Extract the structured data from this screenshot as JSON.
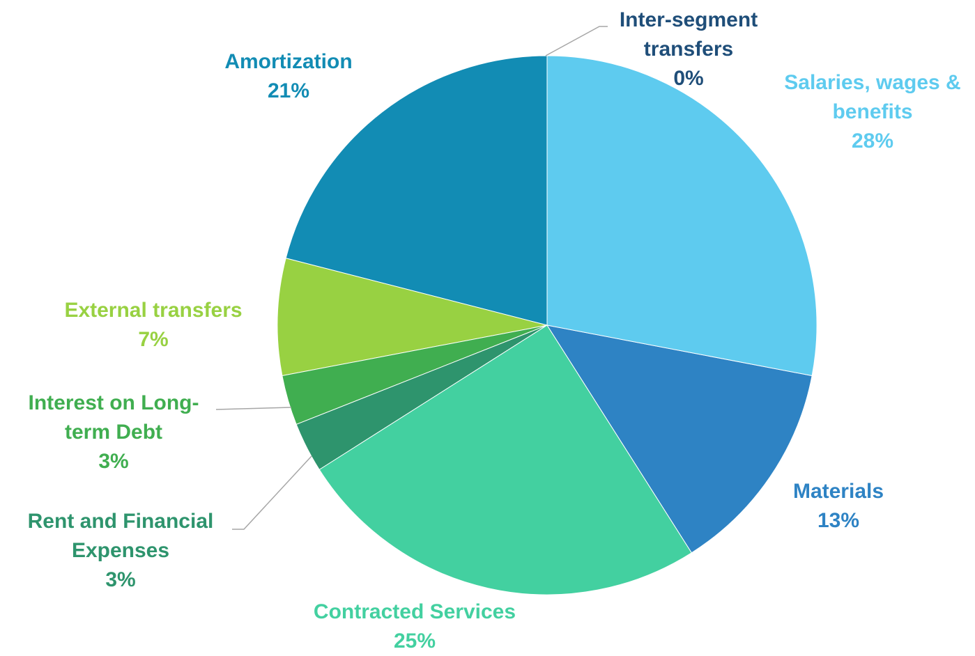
{
  "chart_data": {
    "type": "pie",
    "categories": [
      "Salaries, wages & benefits",
      "Materials",
      "Contracted Services",
      "Rent and Financial Expenses",
      "Interest on Long-term Debt",
      "External transfers",
      "Amortization",
      "Inter-segment transfers"
    ],
    "values": [
      28,
      13,
      25,
      3,
      3,
      7,
      21,
      0
    ],
    "value_labels": [
      "28%",
      "13%",
      "25%",
      "3%",
      "3%",
      "7%",
      "21%",
      "0%"
    ],
    "colors": [
      "#5ecbef",
      "#2e83c4",
      "#43d0a0",
      "#2e946d",
      "#40ae50",
      "#98d142",
      "#128cb4",
      "#1f4e79"
    ]
  }
}
